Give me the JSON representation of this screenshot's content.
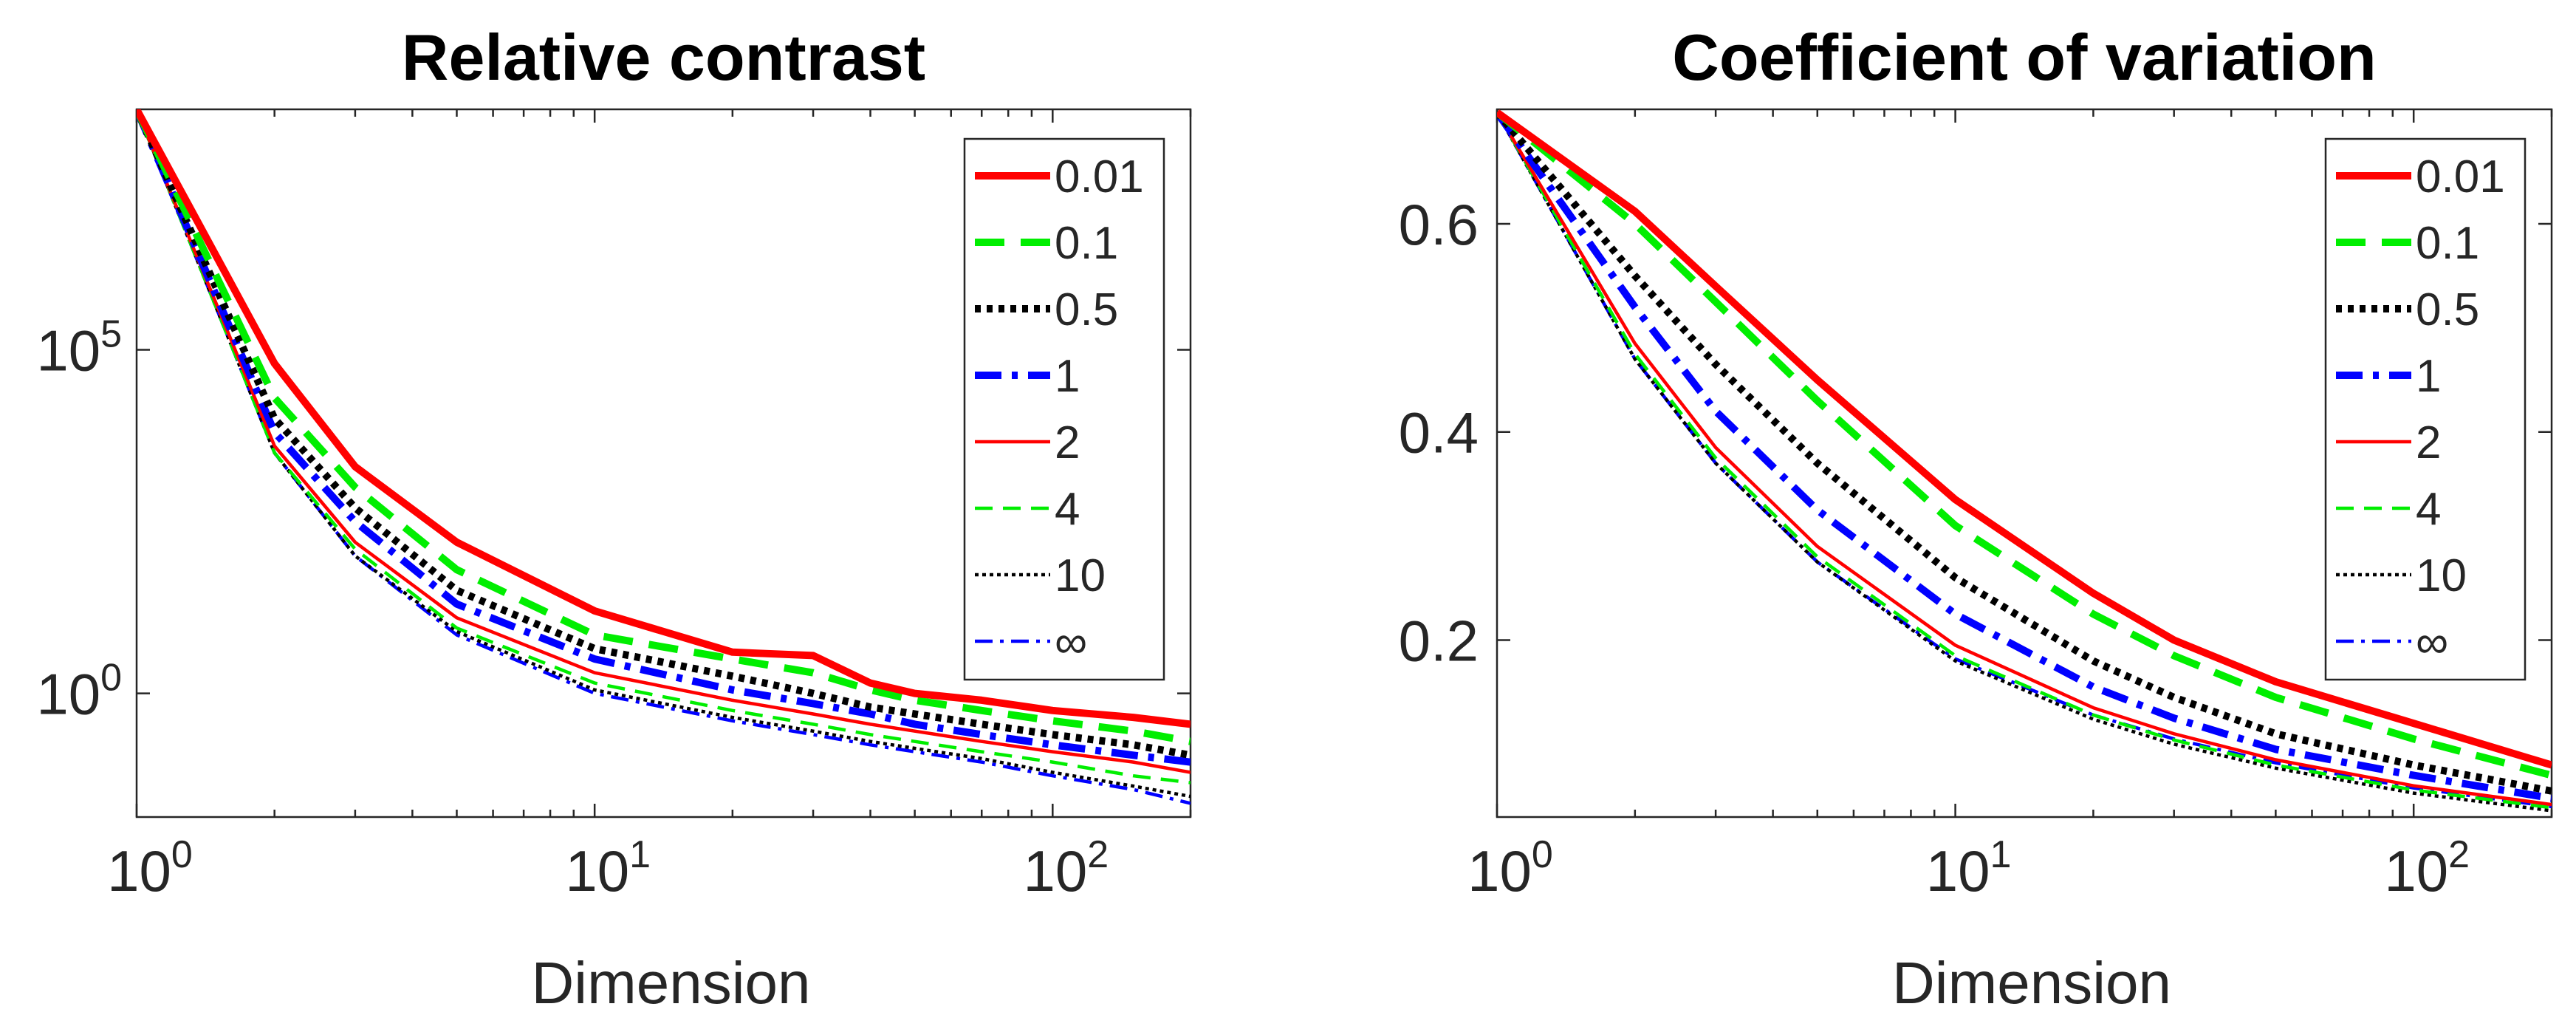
{
  "chart_data": [
    {
      "type": "line",
      "title": "Relative contrast",
      "xlabel": "Dimension",
      "ylabel": "",
      "xscale": "log",
      "yscale": "log",
      "xlim": [
        1,
        200
      ],
      "ylim_log10": [
        -1.8,
        8.5
      ],
      "xticks": [
        {
          "base": "10",
          "exp": "0"
        },
        {
          "base": "10",
          "exp": "1"
        },
        {
          "base": "10",
          "exp": "2"
        }
      ],
      "yticks": [
        {
          "base": "10",
          "exp": "5"
        },
        {
          "base": "10",
          "exp": "0"
        }
      ],
      "legend_position": "top-right",
      "x": [
        1,
        2,
        3,
        5,
        10,
        20,
        30,
        40,
        50,
        70,
        100,
        150,
        200
      ],
      "series": [
        {
          "name": "0.01",
          "color": "#ff0000",
          "style": "solid-thick",
          "values_log10": [
            8.5,
            4.8,
            3.3,
            2.2,
            1.2,
            0.6,
            0.55,
            0.15,
            0.0,
            -0.1,
            -0.25,
            -0.35,
            -0.45
          ]
        },
        {
          "name": "0.1",
          "color": "#00ee00",
          "style": "dashed-thick",
          "values_log10": [
            8.5,
            4.3,
            3.0,
            1.8,
            0.85,
            0.5,
            0.3,
            0.05,
            -0.1,
            -0.25,
            -0.4,
            -0.55,
            -0.7
          ]
        },
        {
          "name": "0.5",
          "color": "#000000",
          "style": "dotted-thick",
          "values_log10": [
            8.5,
            4.0,
            2.7,
            1.5,
            0.65,
            0.25,
            0.0,
            -0.2,
            -0.3,
            -0.45,
            -0.6,
            -0.75,
            -0.9
          ]
        },
        {
          "name": "1",
          "color": "#0000ff",
          "style": "dashdot-thick",
          "values_log10": [
            8.5,
            3.8,
            2.5,
            1.3,
            0.5,
            0.05,
            -0.15,
            -0.3,
            -0.45,
            -0.6,
            -0.75,
            -0.9,
            -1.0
          ]
        },
        {
          "name": "2",
          "color": "#ff0000",
          "style": "solid-thin",
          "values_log10": [
            8.5,
            3.6,
            2.2,
            1.1,
            0.3,
            -0.1,
            -0.3,
            -0.45,
            -0.55,
            -0.7,
            -0.85,
            -1.0,
            -1.15
          ]
        },
        {
          "name": "4",
          "color": "#00ee00",
          "style": "dashed-thin",
          "values_log10": [
            8.5,
            3.5,
            2.1,
            0.95,
            0.15,
            -0.25,
            -0.45,
            -0.6,
            -0.7,
            -0.85,
            -1.0,
            -1.2,
            -1.3
          ]
        },
        {
          "name": "10",
          "color": "#000000",
          "style": "dotted-thin",
          "values_log10": [
            8.5,
            3.5,
            2.0,
            0.9,
            0.05,
            -0.35,
            -0.55,
            -0.7,
            -0.8,
            -0.95,
            -1.15,
            -1.35,
            -1.5
          ]
        },
        {
          "name": "∞",
          "color": "#0000ff",
          "style": "dashdot-thin",
          "values_log10": [
            8.5,
            3.5,
            2.0,
            0.85,
            0.0,
            -0.4,
            -0.6,
            -0.75,
            -0.85,
            -1.0,
            -1.2,
            -1.4,
            -1.6
          ]
        }
      ]
    },
    {
      "type": "line",
      "title": "Coefficient of variation",
      "xlabel": "Dimension",
      "ylabel": "",
      "xscale": "log",
      "yscale": "linear",
      "xlim": [
        1,
        200
      ],
      "ylim": [
        0.03,
        0.71
      ],
      "xticks": [
        {
          "base": "10",
          "exp": "0"
        },
        {
          "base": "10",
          "exp": "1"
        },
        {
          "base": "10",
          "exp": "2"
        }
      ],
      "yticks": [
        "0.2",
        "0.4",
        "0.6"
      ],
      "legend_position": "top-right",
      "x": [
        1,
        2,
        3,
        5,
        10,
        20,
        30,
        50,
        100,
        200
      ],
      "series": [
        {
          "name": "0.01",
          "color": "#ff0000",
          "style": "solid-thick",
          "values": [
            0.707,
            0.612,
            0.54,
            0.45,
            0.335,
            0.245,
            0.2,
            0.16,
            0.12,
            0.08
          ]
        },
        {
          "name": "0.1",
          "color": "#00ee00",
          "style": "dashed-thick",
          "values": [
            0.707,
            0.6,
            0.525,
            0.43,
            0.31,
            0.225,
            0.185,
            0.145,
            0.105,
            0.07
          ]
        },
        {
          "name": "0.5",
          "color": "#000000",
          "style": "dotted-thick",
          "values": [
            0.707,
            0.55,
            0.465,
            0.37,
            0.26,
            0.18,
            0.145,
            0.11,
            0.08,
            0.055
          ]
        },
        {
          "name": "1",
          "color": "#0000ff",
          "style": "dashdot-thick",
          "values": [
            0.707,
            0.52,
            0.42,
            0.325,
            0.225,
            0.155,
            0.125,
            0.095,
            0.07,
            0.048
          ]
        },
        {
          "name": "2",
          "color": "#ff0000",
          "style": "solid-thin",
          "values": [
            0.707,
            0.485,
            0.385,
            0.29,
            0.195,
            0.135,
            0.11,
            0.085,
            0.06,
            0.042
          ]
        },
        {
          "name": "4",
          "color": "#00ee00",
          "style": "dashed-thin",
          "values": [
            0.707,
            0.475,
            0.375,
            0.28,
            0.185,
            0.128,
            0.104,
            0.08,
            0.056,
            0.039
          ]
        },
        {
          "name": "10",
          "color": "#000000",
          "style": "dotted-thin",
          "values": [
            0.707,
            0.47,
            0.37,
            0.275,
            0.18,
            0.124,
            0.1,
            0.077,
            0.053,
            0.036
          ]
        },
        {
          "name": "∞",
          "color": "#0000ff",
          "style": "dashdot-thin",
          "values": [
            0.707,
            0.47,
            0.37,
            0.275,
            0.182,
            0.128,
            0.105,
            0.082,
            0.058,
            0.04
          ]
        }
      ]
    }
  ]
}
